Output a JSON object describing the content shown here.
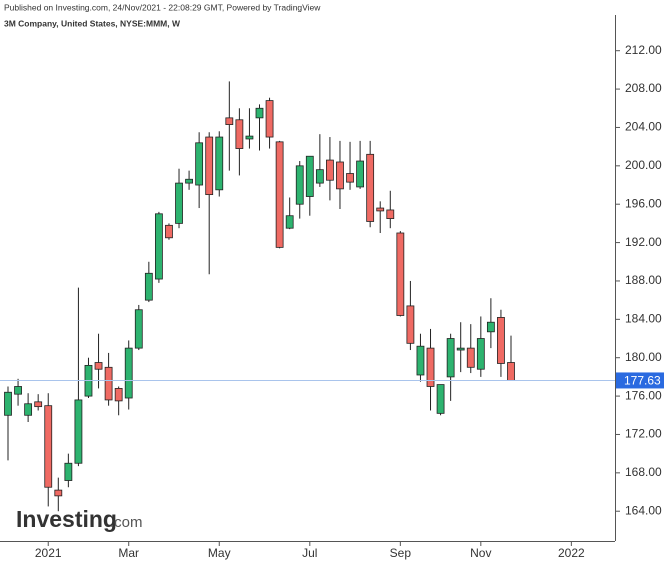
{
  "header": {
    "published": "Published on Investing.com, 24/Nov/2021 - 22:08:29 GMT, Powered by TradingView",
    "symbol": "3M Company, United States, NYSE:MMM, W"
  },
  "logo": {
    "name": "Investing",
    "suffix": ".com"
  },
  "chart_data": {
    "type": "candlestick",
    "categories": [
      null,
      null,
      null,
      null,
      "2021",
      null,
      null,
      null,
      null,
      null,
      null,
      null,
      "Mar",
      null,
      null,
      null,
      null,
      null,
      null,
      null,
      null,
      "May",
      null,
      null,
      null,
      null,
      null,
      null,
      null,
      null,
      "Jul",
      null,
      null,
      null,
      null,
      null,
      null,
      null,
      null,
      "Sep",
      null,
      null,
      null,
      null,
      null,
      null,
      null,
      "Nov",
      null,
      null,
      null,
      null,
      null,
      null,
      null,
      null,
      "2022"
    ],
    "open": [
      174,
      176.2,
      174,
      175.4,
      175,
      166.2,
      167.2,
      169,
      176,
      179.5,
      179,
      176.8,
      175.8,
      181,
      186,
      188.2,
      193.8,
      194,
      198.2,
      198,
      203,
      197.5,
      205,
      204.8,
      202.8,
      205,
      206.8,
      202.5,
      193.5,
      196,
      196.8,
      198.2,
      200.6,
      200.4,
      199.2,
      197.8,
      201.2,
      195.6,
      195.4,
      193,
      185.4,
      178.2,
      181,
      174.2,
      178,
      180.8,
      181,
      178.8,
      182.7,
      184.2,
      179.5,
      null,
      null,
      null,
      null,
      null,
      null
    ],
    "high": [
      177,
      177.8,
      176.3,
      176.2,
      176.3,
      167.5,
      170,
      187.3,
      180,
      182.5,
      180.5,
      177,
      181.8,
      185.5,
      190,
      195.2,
      194,
      199.7,
      199.5,
      203.5,
      203.5,
      203.6,
      208.8,
      206,
      206,
      206.4,
      207.1,
      202.6,
      196.7,
      200.5,
      201,
      203.3,
      203,
      202.6,
      202.5,
      202.6,
      202.6,
      196.3,
      197.4,
      193.2,
      188,
      182.5,
      183,
      177.2,
      182.5,
      183.7,
      183.5,
      184.3,
      186.2,
      185,
      182.3,
      null,
      null,
      null,
      null,
      null,
      null
    ],
    "low": [
      169.3,
      175,
      173.3,
      174.5,
      164.5,
      164,
      166.5,
      168.7,
      175.8,
      176.8,
      175,
      174,
      174.6,
      180.8,
      185.8,
      187.8,
      192.3,
      193.5,
      197.5,
      195.6,
      188.7,
      196.8,
      199.5,
      199,
      201.8,
      201.6,
      201.8,
      191.4,
      193.4,
      194.5,
      194.8,
      197.8,
      196.4,
      195.5,
      197.5,
      197.6,
      193.6,
      193,
      193.5,
      184.3,
      180.8,
      177.5,
      174.5,
      174,
      175.5,
      178.5,
      178.4,
      178,
      181,
      178,
      177.6,
      null,
      null,
      null,
      null,
      null,
      null
    ],
    "close": [
      176.4,
      177,
      175.2,
      174.9,
      166.5,
      165.6,
      169,
      175.6,
      179.2,
      178.8,
      175.6,
      175.5,
      181,
      185,
      188.8,
      195,
      192.5,
      198.2,
      198.6,
      202.4,
      197,
      203,
      204.3,
      201.8,
      203.1,
      206,
      203,
      191.5,
      194.8,
      200,
      201,
      199.6,
      198.5,
      197.6,
      198.3,
      200.5,
      194.2,
      195.3,
      194.5,
      184.4,
      181.5,
      181.2,
      177,
      177.2,
      182,
      181,
      179,
      182,
      183.7,
      179.4,
      177.63,
      null,
      null,
      null,
      null,
      null,
      null
    ],
    "up_color": "#2db36f",
    "down_color": "#ef6a63",
    "last_price": 177.63,
    "last_price_color": "#2a6ae0",
    "ylim": [
      161,
      215.2
    ],
    "yticks": [
      {
        "value": 164,
        "label": "164.00"
      },
      {
        "value": 168,
        "label": "168.00"
      },
      {
        "value": 172,
        "label": "172.00"
      },
      {
        "value": 176,
        "label": "176.00"
      },
      {
        "value": 180,
        "label": "180.00"
      },
      {
        "value": 184,
        "label": "184.00"
      },
      {
        "value": 188,
        "label": "188.00"
      },
      {
        "value": 192,
        "label": "192.00"
      },
      {
        "value": 196,
        "label": "196.00"
      },
      {
        "value": 200,
        "label": "200.00"
      },
      {
        "value": 204,
        "label": "204.00"
      },
      {
        "value": 208,
        "label": "208.00"
      },
      {
        "value": 212,
        "label": "212.00"
      }
    ]
  }
}
